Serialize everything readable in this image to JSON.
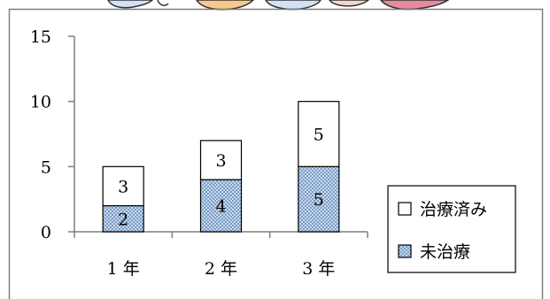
{
  "chart_data": {
    "type": "bar",
    "stacked": true,
    "categories": [
      "1 年",
      "2 年",
      "3 年"
    ],
    "series": [
      {
        "name": "未治療",
        "values": [
          2,
          4,
          5
        ],
        "fill": "pattern-blue"
      },
      {
        "name": "治療済み",
        "values": [
          3,
          3,
          5
        ],
        "fill": "#ffffff"
      }
    ],
    "ylim": [
      0,
      15
    ],
    "yticks": [
      "0",
      "5",
      "10",
      "15"
    ],
    "grid": false,
    "legend": {
      "placement": "right",
      "order": [
        "治療済み",
        "未治療"
      ]
    },
    "colors": {
      "pattern": "#aec8e6",
      "pattern_dot": "#6f8fb8",
      "bar_stroke": "#000000",
      "frame": "#7f7f7f"
    }
  }
}
